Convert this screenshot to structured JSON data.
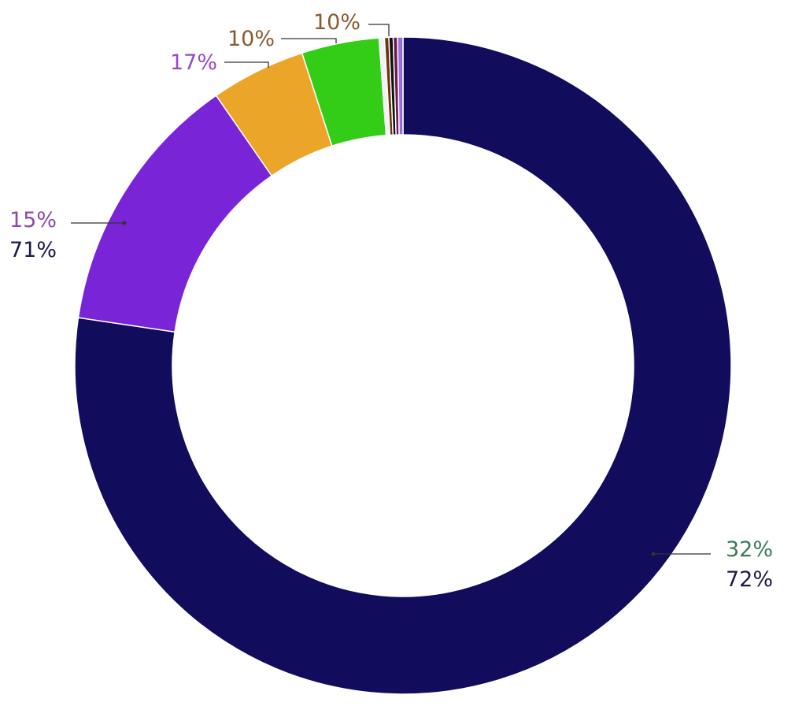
{
  "chart_data": {
    "type": "pie",
    "donut": true,
    "slices": [
      {
        "value": 73.0,
        "color": "#110c5c"
      },
      {
        "value": 12.3,
        "color": "#7a24d8"
      },
      {
        "value": 4.4,
        "color": "#eba629"
      },
      {
        "value": 3.6,
        "color": "#33cc17"
      },
      {
        "value": 0.25,
        "color": "#f2f2f2"
      },
      {
        "value": 0.2,
        "color": "#6b3410"
      },
      {
        "value": 0.2,
        "color": "#111111"
      },
      {
        "value": 0.2,
        "color": "#6a1a50"
      },
      {
        "value": 0.25,
        "color": "#9a70d8"
      }
    ],
    "labels": [
      {
        "text": "32%",
        "color": "#3a7a5a",
        "slice": 0
      },
      {
        "text": "72%",
        "color": "#1c1a48",
        "slice": 0
      },
      {
        "text": "15%",
        "color": "#8a4ab0",
        "slice": 1
      },
      {
        "text": "71%",
        "color": "#1c1a48",
        "slice": 1
      },
      {
        "text": "17%",
        "color": "#9a48c8",
        "slice": 2
      },
      {
        "text": "10%",
        "color": "#8a5a30",
        "slice": 3
      },
      {
        "text": "10%",
        "color": "#8a5a30",
        "slice": 5
      }
    ]
  }
}
